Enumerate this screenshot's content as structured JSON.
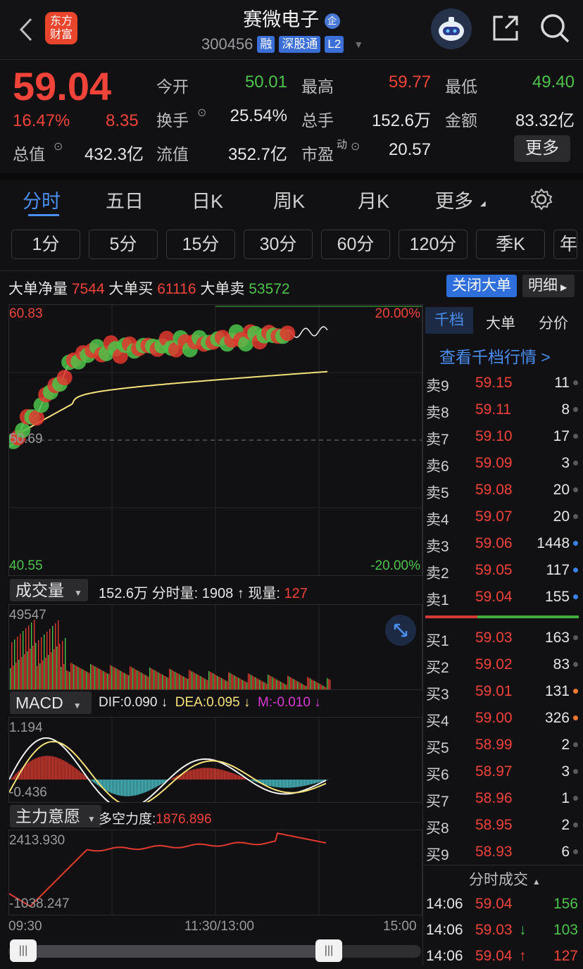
{
  "header": {
    "title": "赛微电子",
    "code": "300456",
    "tags": [
      "融",
      "深股通",
      "L2"
    ],
    "logo_text": "东方财富"
  },
  "quote": {
    "price": "59.04",
    "change_pct": "16.47%",
    "change": "8.35",
    "open_label": "今开",
    "open": "50.01",
    "high_label": "最高",
    "high": "59.77",
    "low_label": "最低",
    "low": "49.40",
    "turnover_label": "换手",
    "turnover": "25.54%",
    "volume_label": "总手",
    "volume": "152.6万",
    "amount_label": "金额",
    "amount": "83.32亿",
    "mktcap_label": "总值",
    "mktcap": "432.3亿",
    "float_label": "流值",
    "float": "352.7亿",
    "pe_label": "市盈",
    "pe_sup": "动",
    "pe": "20.57",
    "more_label": "更多"
  },
  "tabs": [
    "分时",
    "五日",
    "日K",
    "周K",
    "月K",
    "更多"
  ],
  "periods": [
    "1分",
    "5分",
    "15分",
    "30分",
    "60分",
    "120分",
    "季K",
    "年"
  ],
  "bigorder": {
    "net_label": "大单净量",
    "net": "7544",
    "buy_label": "大单买",
    "buy": "61116",
    "sell_label": "大单卖",
    "sell": "53572",
    "close_btn": "关闭大单",
    "detail_btn": "明细"
  },
  "price_chart": {
    "max": "60.83",
    "max_pct": "20.00%",
    "mid": "50.69",
    "min": "40.55",
    "min_pct": "-20.00%"
  },
  "volume_panel": {
    "dropdown": "成交量",
    "total": "152.6万",
    "tick_label": "分时量:",
    "tick": "1908",
    "tick_arrow": "↑",
    "now_label": "现量:",
    "now": "127",
    "max": "49547"
  },
  "macd_panel": {
    "dropdown": "MACD",
    "dif": "DIF:0.090 ↓",
    "dea": "DEA:0.095 ↓",
    "m": "M:-0.010 ↓",
    "max": "1.194",
    "min": "-0.436"
  },
  "force_panel": {
    "dropdown": "主力意愿",
    "label": "多空力度:",
    "value": "1876.896",
    "max": "2413.930",
    "min": "-1038.247"
  },
  "time_axis": [
    "09:30",
    "11:30/13:00",
    "15:00"
  ],
  "orderbook": {
    "tabs": [
      "千档",
      "大单",
      "分价"
    ],
    "link": "查看千档行情 >",
    "asks": [
      {
        "label": "卖9",
        "price": "59.15",
        "qty": "11"
      },
      {
        "label": "卖8",
        "price": "59.11",
        "qty": "8"
      },
      {
        "label": "卖7",
        "price": "59.10",
        "qty": "17"
      },
      {
        "label": "卖6",
        "price": "59.09",
        "qty": "3"
      },
      {
        "label": "卖5",
        "price": "59.08",
        "qty": "20"
      },
      {
        "label": "卖4",
        "price": "59.07",
        "qty": "20"
      },
      {
        "label": "卖3",
        "price": "59.06",
        "qty": "1448"
      },
      {
        "label": "卖2",
        "price": "59.05",
        "qty": "117"
      },
      {
        "label": "卖1",
        "price": "59.04",
        "qty": "155"
      }
    ],
    "bids": [
      {
        "label": "买1",
        "price": "59.03",
        "qty": "163"
      },
      {
        "label": "买2",
        "price": "59.02",
        "qty": "83"
      },
      {
        "label": "买3",
        "price": "59.01",
        "qty": "131"
      },
      {
        "label": "买4",
        "price": "59.00",
        "qty": "326"
      },
      {
        "label": "买5",
        "price": "58.99",
        "qty": "2"
      },
      {
        "label": "买6",
        "price": "58.97",
        "qty": "3"
      },
      {
        "label": "买7",
        "price": "58.96",
        "qty": "1"
      },
      {
        "label": "买8",
        "price": "58.95",
        "qty": "2"
      },
      {
        "label": "买9",
        "price": "58.93",
        "qty": "6"
      }
    ],
    "trades_title": "分时成交",
    "trades": [
      {
        "time": "14:06",
        "price": "59.04",
        "arrow": "",
        "qty": "156"
      },
      {
        "time": "14:06",
        "price": "59.03",
        "arrow": "↓",
        "qty": "103"
      },
      {
        "time": "14:06",
        "price": "59.04",
        "arrow": "↑",
        "qty": "127"
      }
    ]
  },
  "colors": {
    "up": "#f0433a",
    "down": "#4cc34a",
    "accent": "#3b82e8",
    "avg": "#f5e27a"
  }
}
